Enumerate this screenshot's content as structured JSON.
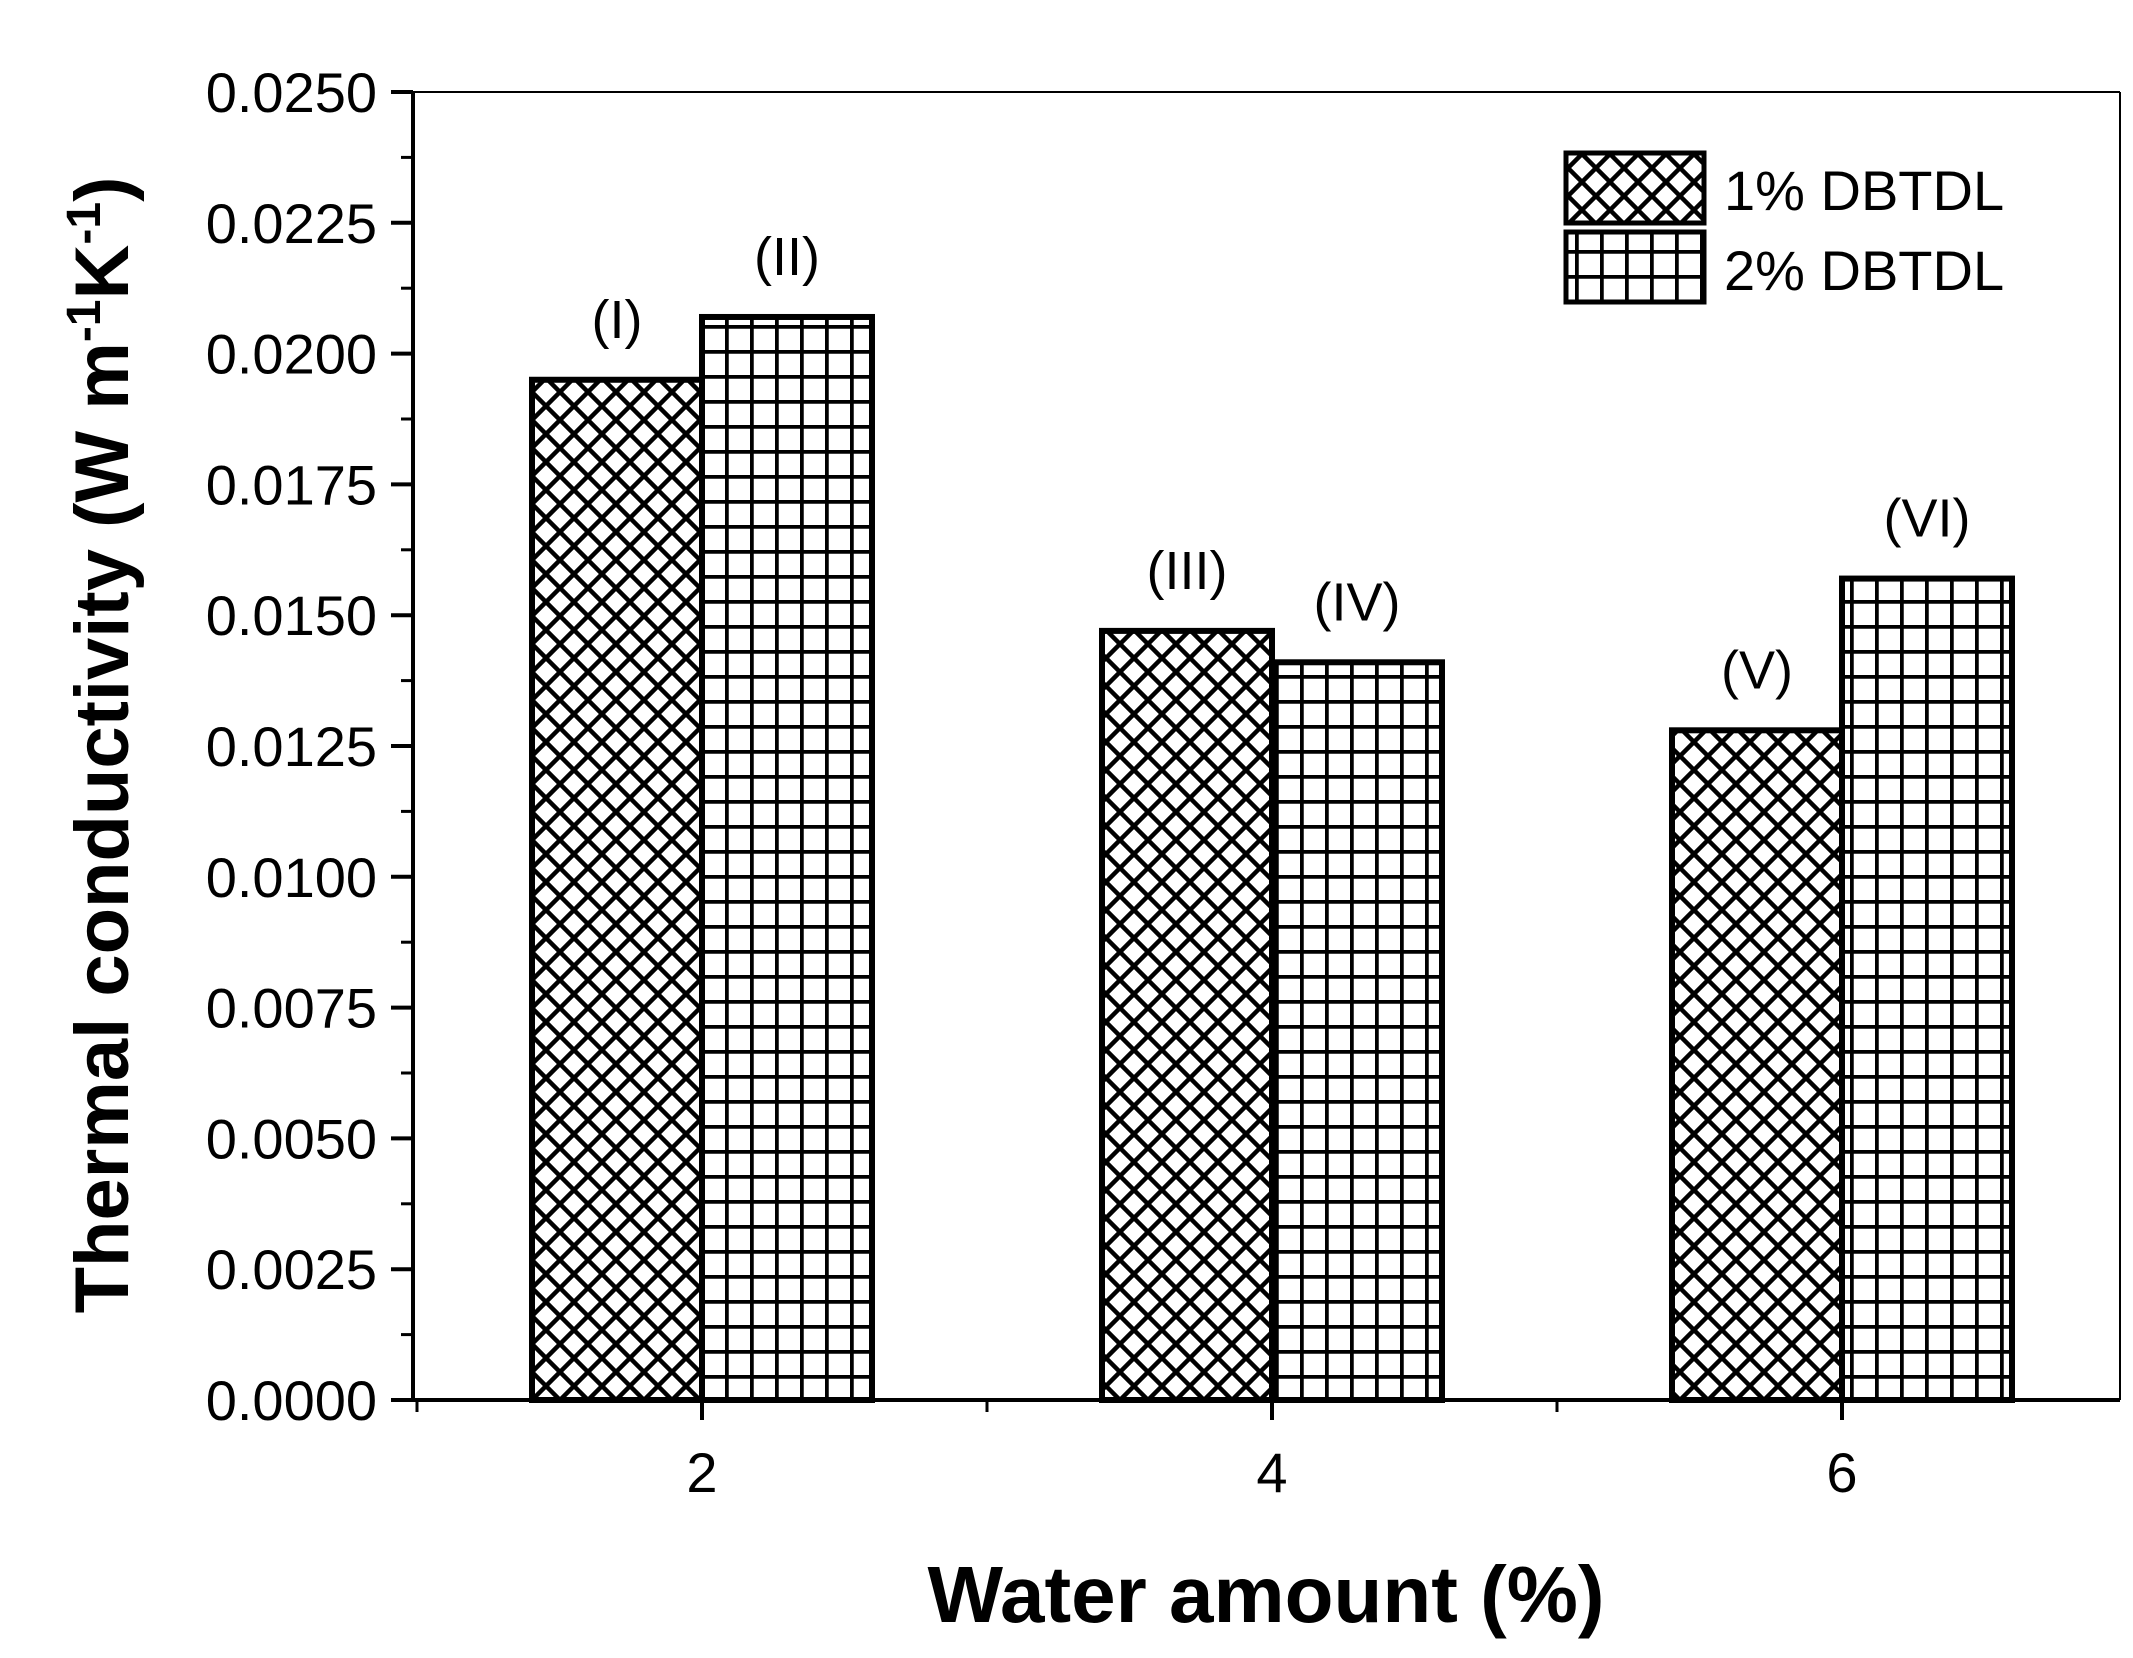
{
  "chart_data": {
    "type": "bar",
    "xlabel": "Water amount (%)",
    "ylabel": {
      "prefix": "Thermal conductivity (W m",
      "sup1": "-1",
      "mid": "K",
      "sup2": "-1",
      "suffix": ")"
    },
    "categories": [
      "2",
      "4",
      "6"
    ],
    "ylim": [
      0,
      0.025
    ],
    "yticks": [
      "0.0000",
      "0.0025",
      "0.0050",
      "0.0075",
      "0.0100",
      "0.0125",
      "0.0150",
      "0.0175",
      "0.0200",
      "0.0225",
      "0.0250"
    ],
    "legend_position": "top-right",
    "series": [
      {
        "name": "1% DBTDL",
        "pattern": "crosshatch",
        "values": [
          0.0195,
          0.0147,
          0.0128
        ],
        "labels": [
          "(I)",
          "(III)",
          "(V)"
        ]
      },
      {
        "name": "2% DBTDL",
        "pattern": "grid",
        "values": [
          0.0207,
          0.0141,
          0.0157
        ],
        "labels": [
          "(II)",
          "(IV)",
          "(VI)"
        ]
      }
    ]
  }
}
